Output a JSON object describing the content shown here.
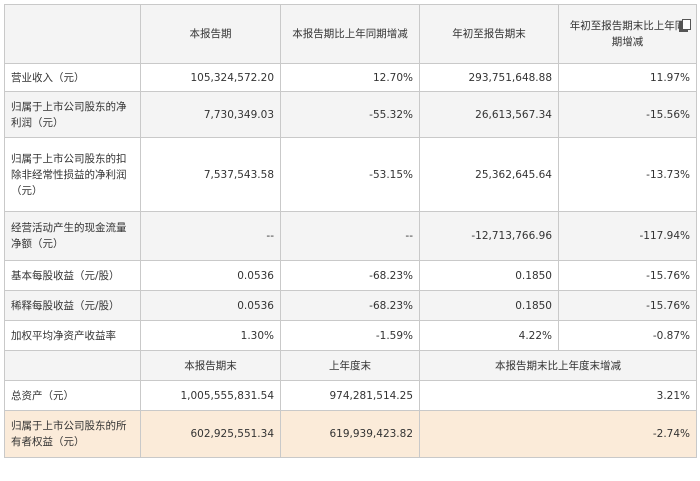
{
  "header": {
    "c0": "",
    "c1": "本报告期",
    "c2": "本报告期比上年同期增减",
    "c3": "年初至报告期末",
    "c4": "年初至报告期末比上年同期增减"
  },
  "rows": [
    {
      "label": "营业收入（元）",
      "v1": "105,324,572.20",
      "v2": "12.70%",
      "v3": "293,751,648.88",
      "v4": "11.97%"
    },
    {
      "label": "归属于上市公司股东的净利润（元）",
      "v1": "7,730,349.03",
      "v2": "-55.32%",
      "v3": "26,613,567.34",
      "v4": "-15.56%"
    },
    {
      "label": "归属于上市公司股东的扣除非经常性损益的净利润（元）",
      "v1": "7,537,543.58",
      "v2": "-53.15%",
      "v3": "25,362,645.64",
      "v4": "-13.73%"
    },
    {
      "label": "经营活动产生的现金流量净额（元）",
      "v1": "--",
      "v2": "--",
      "v3": "-12,713,766.96",
      "v4": "-117.94%"
    },
    {
      "label": "基本每股收益（元/股）",
      "v1": "0.0536",
      "v2": "-68.23%",
      "v3": "0.1850",
      "v4": "-15.76%"
    },
    {
      "label": "稀释每股收益（元/股）",
      "v1": "0.0536",
      "v2": "-68.23%",
      "v3": "0.1850",
      "v4": "-15.76%"
    },
    {
      "label": "加权平均净资产收益率",
      "v1": "1.30%",
      "v2": "-1.59%",
      "v3": "4.22%",
      "v4": "-0.87%"
    }
  ],
  "header2": {
    "c0": "",
    "c1": "本报告期末",
    "c2": "上年度末",
    "c3": "本报告期末比上年度末增减"
  },
  "rows2": [
    {
      "label": "总资产（元）",
      "v1": "1,005,555,831.54",
      "v2": "974,281,514.25",
      "v3": "3.21%"
    },
    {
      "label": "归属于上市公司股东的所有者权益（元）",
      "v1": "602,925,551.34",
      "v2": "619,939,423.82",
      "v3": "-2.74%"
    }
  ],
  "icons": {
    "copy": "copy-icon"
  }
}
